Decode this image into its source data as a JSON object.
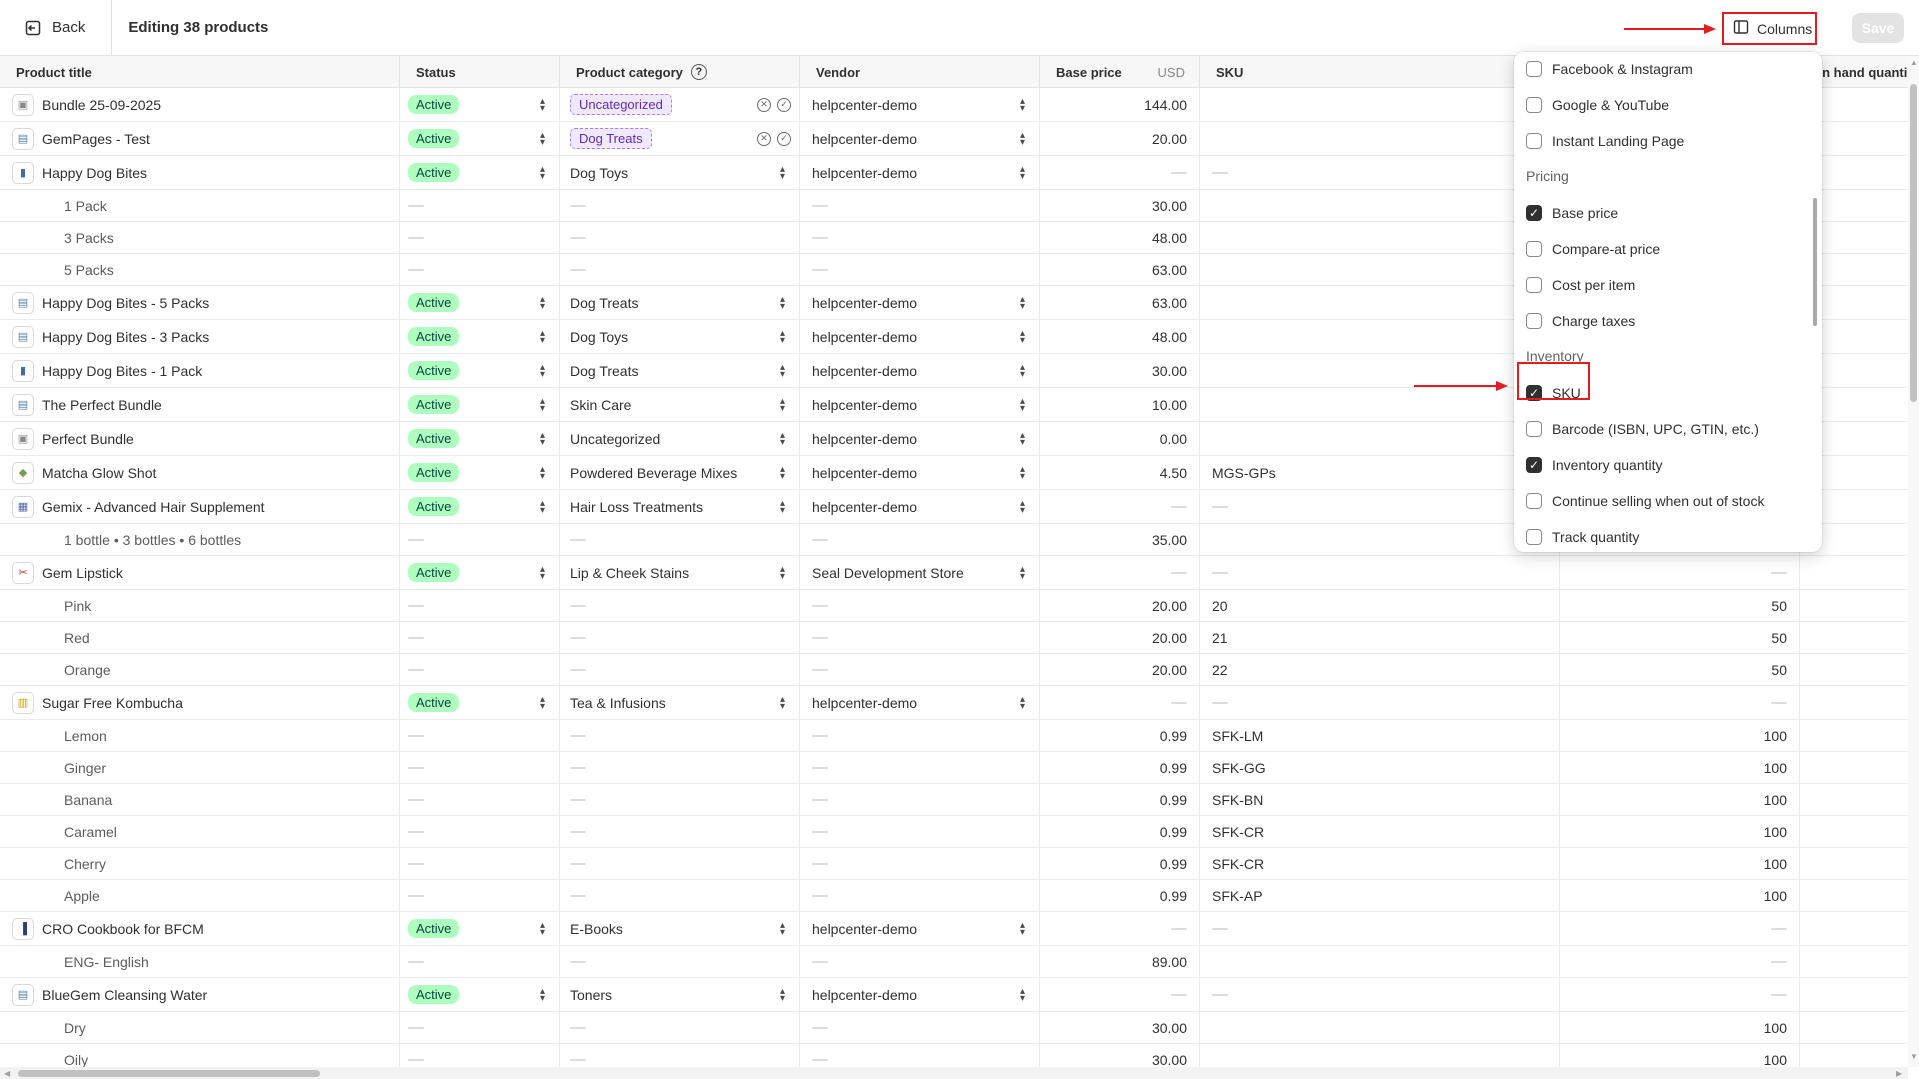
{
  "topbar": {
    "back_label": "Back",
    "title": "Editing 38 products",
    "columns_label": "Columns",
    "save_label": "Save"
  },
  "headers": {
    "title": "Product title",
    "status": "Status",
    "category": "Product category",
    "vendor": "Vendor",
    "price": "Base price",
    "currency": "USD",
    "sku": "SKU",
    "qty": "On hand quanti"
  },
  "rows": [
    {
      "type": "product",
      "title": "Bundle 25-09-2025",
      "thumb": "bundle",
      "status": "Active",
      "category": "Uncategorized",
      "category_tag": true,
      "vendor": "helpcenter-demo",
      "price": "144.00",
      "sku": "",
      "qty": ""
    },
    {
      "type": "product",
      "title": "GemPages - Test",
      "thumb": "img",
      "status": "Active",
      "category": "Dog Treats",
      "category_tag": true,
      "vendor": "helpcenter-demo",
      "price": "20.00",
      "sku": "",
      "qty": ""
    },
    {
      "type": "product",
      "title": "Happy Dog Bites",
      "thumb": "jar",
      "status": "Active",
      "category": "Dog Toys",
      "vendor": "helpcenter-demo",
      "price": "—",
      "sku": "—",
      "qty": ""
    },
    {
      "type": "variant",
      "title": "1 Pack",
      "price": "30.00",
      "sku": "",
      "qty": ""
    },
    {
      "type": "variant",
      "title": "3 Packs",
      "price": "48.00",
      "sku": "",
      "qty": ""
    },
    {
      "type": "variant",
      "title": "5 Packs",
      "price": "63.00",
      "sku": "",
      "qty": ""
    },
    {
      "type": "product",
      "title": "Happy Dog Bites - 5 Packs",
      "thumb": "img",
      "status": "Active",
      "category": "Dog Treats",
      "vendor": "helpcenter-demo",
      "price": "63.00",
      "sku": "",
      "qty": ""
    },
    {
      "type": "product",
      "title": "Happy Dog Bites - 3 Packs",
      "thumb": "img",
      "status": "Active",
      "category": "Dog Toys",
      "vendor": "helpcenter-demo",
      "price": "48.00",
      "sku": "",
      "qty": ""
    },
    {
      "type": "product",
      "title": "Happy Dog Bites - 1 Pack",
      "thumb": "jar",
      "status": "Active",
      "category": "Dog Treats",
      "vendor": "helpcenter-demo",
      "price": "30.00",
      "sku": "",
      "qty": ""
    },
    {
      "type": "product",
      "title": "The Perfect Bundle",
      "thumb": "img",
      "status": "Active",
      "category": "Skin Care",
      "vendor": "helpcenter-demo",
      "price": "10.00",
      "sku": "",
      "qty": ""
    },
    {
      "type": "product",
      "title": "Perfect Bundle",
      "thumb": "bundle",
      "status": "Active",
      "category": "Uncategorized",
      "vendor": "helpcenter-demo",
      "price": "0.00",
      "sku": "",
      "qty": ""
    },
    {
      "type": "product",
      "title": "Matcha Glow Shot",
      "thumb": "bottle",
      "status": "Active",
      "category": "Powdered Beverage Mixes",
      "vendor": "helpcenter-demo",
      "price": "4.50",
      "sku": "MGS-GPs",
      "qty": ""
    },
    {
      "type": "product",
      "title": "Gemix - Advanced Hair Supplement",
      "thumb": "box",
      "status": "Active",
      "category": "Hair Loss Treatments",
      "vendor": "helpcenter-demo",
      "price": "—",
      "sku": "—",
      "qty": ""
    },
    {
      "type": "variant",
      "title": "1 bottle • 3 bottles • 6 bottles",
      "price": "35.00",
      "sku": "",
      "qty": ""
    },
    {
      "type": "product",
      "title": "Gem Lipstick",
      "thumb": "lipstick",
      "status": "Active",
      "category": "Lip & Cheek Stains",
      "vendor": "Seal Development Store",
      "price": "—",
      "sku": "—",
      "qty": "—"
    },
    {
      "type": "variant",
      "title": "Pink",
      "price": "20.00",
      "sku": "20",
      "qty": "50"
    },
    {
      "type": "variant",
      "title": "Red",
      "price": "20.00",
      "sku": "21",
      "qty": "50"
    },
    {
      "type": "variant",
      "title": "Orange",
      "price": "20.00",
      "sku": "22",
      "qty": "50"
    },
    {
      "type": "product",
      "title": "Sugar Free Kombucha",
      "thumb": "can",
      "status": "Active",
      "category": "Tea & Infusions",
      "vendor": "helpcenter-demo",
      "price": "—",
      "sku": "—",
      "qty": "—"
    },
    {
      "type": "variant",
      "title": "Lemon",
      "price": "0.99",
      "sku": "SFK-LM",
      "qty": "100"
    },
    {
      "type": "variant",
      "title": "Ginger",
      "price": "0.99",
      "sku": "SFK-GG",
      "qty": "100"
    },
    {
      "type": "variant",
      "title": "Banana",
      "price": "0.99",
      "sku": "SFK-BN",
      "qty": "100"
    },
    {
      "type": "variant",
      "title": "Caramel",
      "price": "0.99",
      "sku": "SFK-CR",
      "qty": "100"
    },
    {
      "type": "variant",
      "title": "Cherry",
      "price": "0.99",
      "sku": "SFK-CR",
      "qty": "100"
    },
    {
      "type": "variant",
      "title": "Apple",
      "price": "0.99",
      "sku": "SFK-AP",
      "qty": "100"
    },
    {
      "type": "product",
      "title": "CRO Cookbook for BFCM",
      "thumb": "book",
      "status": "Active",
      "category": "E-Books",
      "vendor": "helpcenter-demo",
      "price": "—",
      "sku": "—",
      "qty": "—"
    },
    {
      "type": "variant",
      "title": "ENG- English",
      "price": "89.00",
      "sku": "",
      "qty": "—"
    },
    {
      "type": "product",
      "title": "BlueGem Cleansing Water",
      "thumb": "img",
      "status": "Active",
      "category": "Toners",
      "vendor": "helpcenter-demo",
      "price": "—",
      "sku": "—",
      "qty": "—"
    },
    {
      "type": "variant",
      "title": "Dry",
      "price": "30.00",
      "sku": "",
      "qty": "100"
    },
    {
      "type": "variant",
      "title": "Oily",
      "price": "30.00",
      "sku": "",
      "qty": "100"
    }
  ],
  "columns_menu": {
    "items": [
      {
        "kind": "option",
        "label": "Facebook & Instagram",
        "checked": false
      },
      {
        "kind": "option",
        "label": "Google & YouTube",
        "checked": false
      },
      {
        "kind": "option",
        "label": "Instant Landing Page",
        "checked": false
      },
      {
        "kind": "group",
        "label": "Pricing"
      },
      {
        "kind": "option",
        "label": "Base price",
        "checked": true
      },
      {
        "kind": "option",
        "label": "Compare-at price",
        "checked": false
      },
      {
        "kind": "option",
        "label": "Cost per item",
        "checked": false
      },
      {
        "kind": "option",
        "label": "Charge taxes",
        "checked": false
      },
      {
        "kind": "group",
        "label": "Inventory"
      },
      {
        "kind": "option",
        "label": "SKU",
        "checked": true
      },
      {
        "kind": "option",
        "label": "Barcode (ISBN, UPC, GTIN, etc.)",
        "checked": false
      },
      {
        "kind": "option",
        "label": "Inventory quantity",
        "checked": true
      },
      {
        "kind": "option",
        "label": "Continue selling when out of stock",
        "checked": false
      },
      {
        "kind": "option",
        "label": "Track quantity",
        "checked": false
      }
    ]
  },
  "colors": {
    "active_badge_bg": "#affebf",
    "active_badge_text": "#014b40",
    "tag_border": "#a77eeb",
    "annotation_red": "#e31b23"
  }
}
